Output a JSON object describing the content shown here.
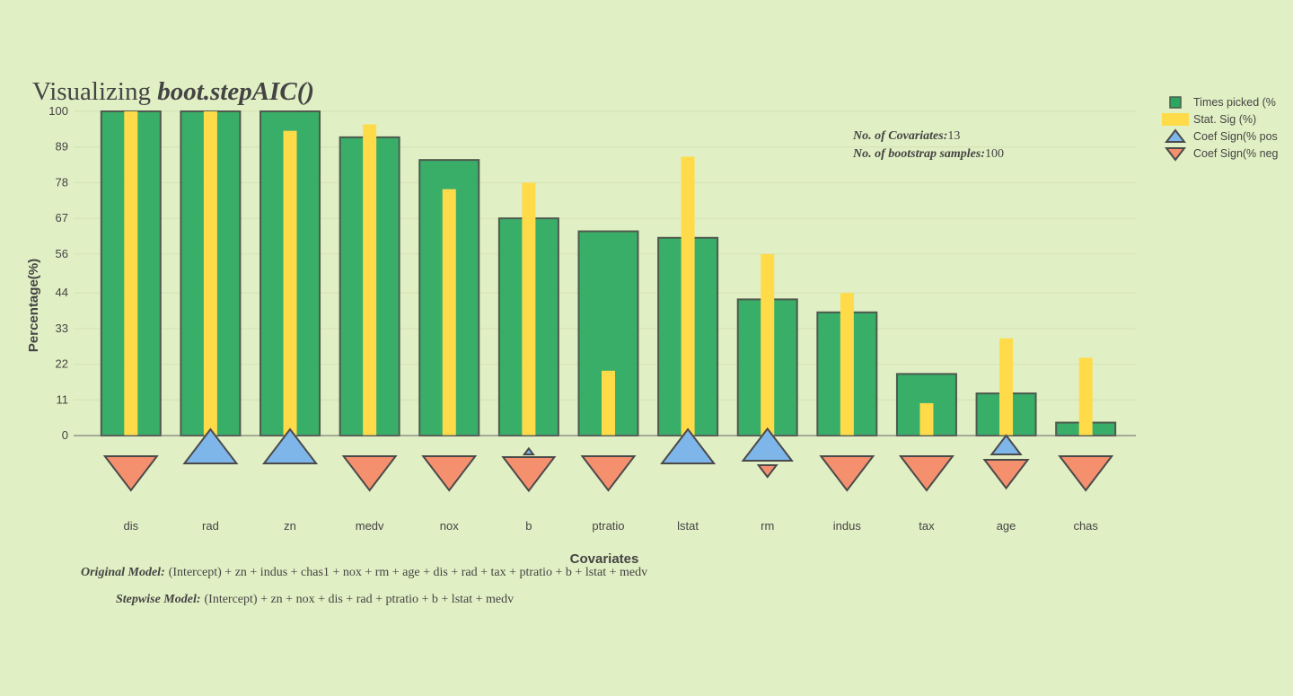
{
  "chart_data": {
    "type": "bar",
    "title": "Visualizing ",
    "title_emphasis": "boot.stepAIC()",
    "xlabel": "Covariates",
    "ylabel": "Percentage(%)",
    "ylim": [
      0,
      100
    ],
    "yticks": [
      0,
      11,
      22,
      33,
      44,
      56,
      67,
      78,
      89,
      100
    ],
    "grid": true,
    "legend_position": "top-right",
    "categories": [
      "dis",
      "rad",
      "zn",
      "medv",
      "nox",
      "b",
      "ptratio",
      "lstat",
      "rm",
      "indus",
      "tax",
      "age",
      "chas"
    ],
    "series": [
      {
        "name": "Times picked (%",
        "type": "bar",
        "color": "#2aa85f",
        "values": [
          100,
          100,
          100,
          92,
          85,
          67,
          63,
          61,
          42,
          38,
          19,
          13,
          4
        ]
      },
      {
        "name": "Stat. Sig (%)",
        "type": "bar",
        "color": "#ffdb4a",
        "values": [
          100,
          100,
          94,
          96,
          76,
          78,
          20,
          86,
          56,
          44,
          10,
          30,
          24
        ]
      },
      {
        "name": "Coef Sign(% pos",
        "type": "marker",
        "color": "#7eb6ea",
        "values": [
          0,
          100,
          100,
          0,
          0,
          3,
          0,
          100,
          88,
          0,
          0,
          31,
          0
        ]
      },
      {
        "name": "Coef Sign(% neg",
        "type": "marker",
        "color": "#f5906e",
        "values": [
          100,
          0,
          0,
          100,
          100,
          97,
          100,
          0,
          12,
          100,
          100,
          69,
          100
        ]
      }
    ],
    "annotations": {
      "covariates_label": "No. of Covariates:",
      "covariates_value": "13",
      "samples_label": "No. of bootstrap samples:",
      "samples_value": "100"
    },
    "footer": {
      "original_label": "Original Model:",
      "original_formula": "(Intercept) + zn + indus + chas1 + nox + rm + age + dis + rad + tax + ptratio + b + lstat + medv",
      "stepwise_label": "Stepwise Model:",
      "stepwise_formula": "(Intercept) + zn + nox + dis + rad + ptratio + b + lstat + medv"
    }
  }
}
